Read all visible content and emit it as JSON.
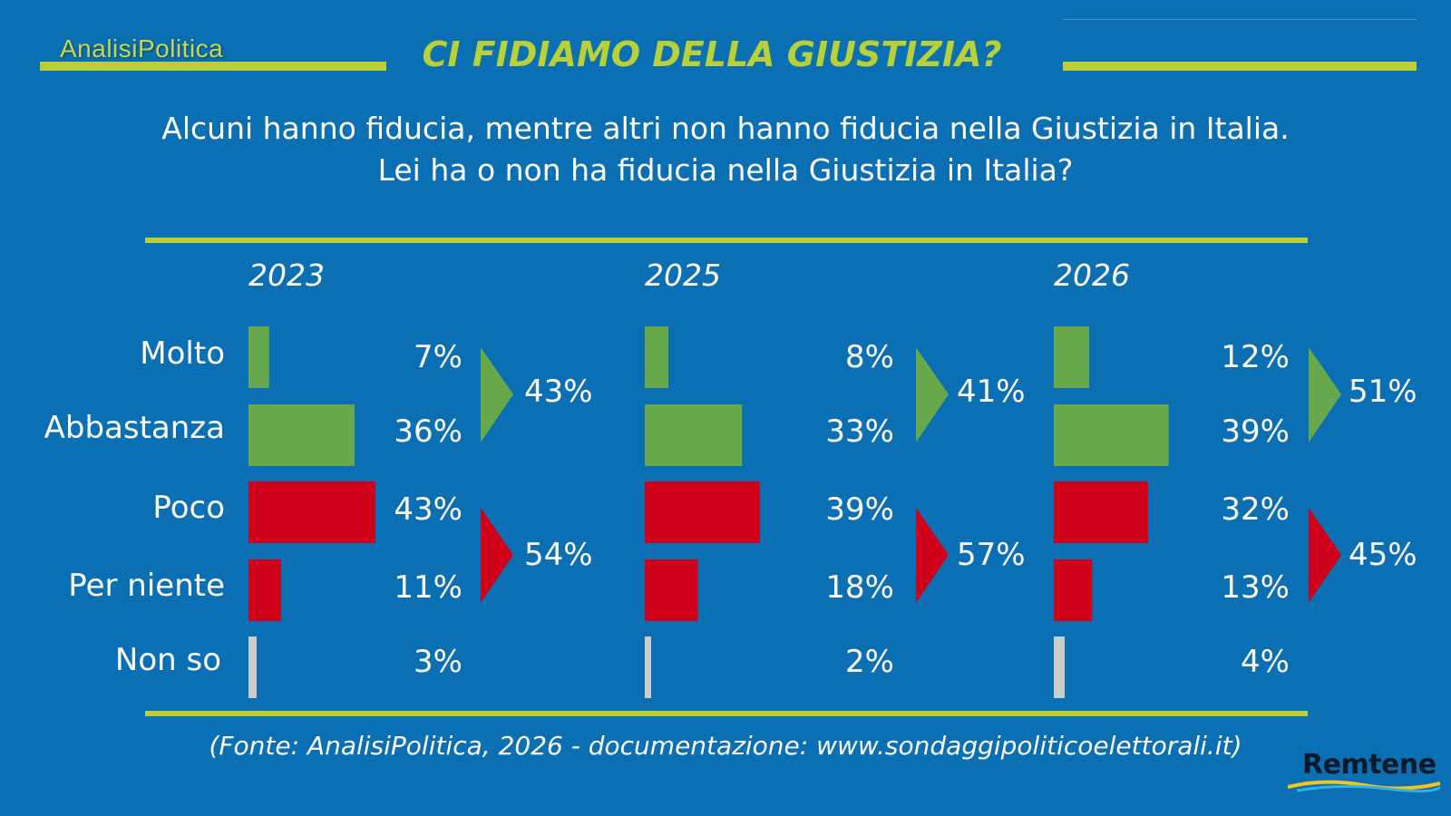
{
  "header": {
    "logo": "AnalisiPolitica",
    "title": "CI FIDIAMO DELLA GIUSTIZIA?",
    "subtitle_line1": "Alcuni hanno fiducia, mentre altri non hanno fiducia nella Giustizia in Italia.",
    "subtitle_line2": "Lei ha o non ha fiducia nella Giustizia in Italia?"
  },
  "footer": {
    "source": "(Fonte: AnalisiPolitica, 2026 - documentazione: www.sondaggipoliticoelettorali.it)",
    "brand": "Remtene"
  },
  "colors": {
    "background": "#0b6fb3",
    "accent": "#b9d136",
    "positive": "#67a84d",
    "negative": "#d0021b",
    "neutral": "#cccccc"
  },
  "chart_data": {
    "type": "bar",
    "title": "CI FIDIAMO DELLA GIUSTIZIA?",
    "categories": [
      "Molto",
      "Abbastanza",
      "Poco",
      "Per niente",
      "Non so"
    ],
    "series": [
      {
        "name": "2023",
        "values": [
          7,
          36,
          43,
          11,
          3
        ],
        "labels": [
          "7%",
          "36%",
          "43%",
          "11%",
          "3%"
        ],
        "totals": {
          "fiducia": "43%",
          "non_fiducia": "54%"
        }
      },
      {
        "name": "2025",
        "values": [
          8,
          33,
          39,
          18,
          2
        ],
        "labels": [
          "8%",
          "33%",
          "39%",
          "18%",
          "2%"
        ],
        "totals": {
          "fiducia": "41%",
          "non_fiducia": "57%"
        }
      },
      {
        "name": "2026",
        "values": [
          12,
          39,
          32,
          13,
          4
        ],
        "labels": [
          "12%",
          "39%",
          "32%",
          "13%",
          "4%"
        ],
        "totals": {
          "fiducia": "51%",
          "non_fiducia": "45%"
        }
      }
    ],
    "unit": "%",
    "legend": "none",
    "grid": false
  }
}
